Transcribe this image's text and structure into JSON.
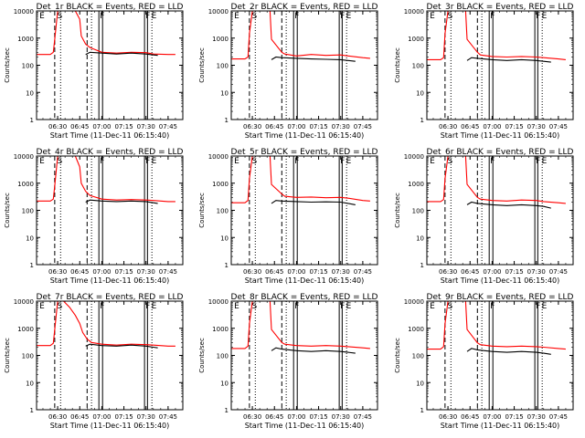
{
  "figure": {
    "background": "#ffffff",
    "colors": {
      "events": "#000000",
      "lld": "#ff0000",
      "axes": "#000000"
    }
  },
  "chart_data": [
    {
      "type": "line",
      "title": "Det_1r BLACK = Events, RED = LLD",
      "xlabel": "Start Time (11-Dec-11 06:15:40)",
      "ylabel": "Counts/sec",
      "yscale": "log",
      "ylim": [
        1,
        10000
      ],
      "y_ticks": [
        "1",
        "10",
        "100",
        "1000",
        "10000"
      ],
      "xlim": [
        "06:15:40",
        "07:55:00"
      ],
      "x_ticks": [
        "06:30",
        "06:45",
        "07:00",
        "07:15",
        "07:30",
        "07:45"
      ],
      "flag_labels": [
        "E",
        "S",
        "F",
        "F",
        "E"
      ],
      "series": [
        {
          "name": "LLD",
          "color": "#ff0000",
          "x": [
            "06:15:40",
            "06:25",
            "06:27",
            "06:28",
            "06:30",
            "06:37",
            "06:42",
            "06:45",
            "06:46",
            "06:49",
            "06:52",
            "07:00",
            "07:10",
            "07:20",
            "07:30",
            "07:35",
            "07:45",
            "07:50"
          ],
          "y": [
            250,
            250,
            300,
            900,
            10000,
            10000,
            10000,
            5000,
            1200,
            600,
            450,
            300,
            280,
            300,
            290,
            260,
            250,
            250
          ]
        },
        {
          "name": "Events",
          "color": "#000000",
          "x": [
            "06:49",
            "06:52",
            "07:00",
            "07:10",
            "07:20",
            "07:30",
            "07:35",
            "07:38"
          ],
          "y": [
            250,
            300,
            280,
            260,
            280,
            260,
            240,
            230
          ]
        }
      ]
    },
    {
      "type": "line",
      "title": "Det_2r BLACK = Events, RED = LLD",
      "xlabel": "Start Time (11-Dec-11 06:15:40)",
      "ylabel": "Counts/sec",
      "yscale": "log",
      "ylim": [
        1,
        10000
      ],
      "y_ticks": [
        "1",
        "10",
        "100",
        "1000",
        "10000"
      ],
      "xlim": [
        "06:15:40",
        "07:55:00"
      ],
      "x_ticks": [
        "06:30",
        "06:45",
        "07:00",
        "07:15",
        "07:30",
        "07:45"
      ],
      "flag_labels": [
        "E",
        "S",
        "F",
        "F",
        "E"
      ],
      "series": [
        {
          "name": "LLD",
          "color": "#ff0000",
          "x": [
            "06:15:40",
            "06:25",
            "06:27",
            "06:28",
            "06:30",
            "06:42",
            "06:43",
            "06:50",
            "06:52",
            "07:00",
            "07:10",
            "07:20",
            "07:30",
            "07:35",
            "07:45",
            "07:50"
          ],
          "y": [
            170,
            170,
            200,
            1500,
            10000,
            10000,
            900,
            300,
            260,
            220,
            250,
            230,
            240,
            220,
            190,
            180
          ]
        },
        {
          "name": "Events",
          "color": "#000000",
          "x": [
            "06:43",
            "06:46",
            "06:50",
            "07:00",
            "07:10",
            "07:20",
            "07:30",
            "07:35",
            "07:40"
          ],
          "y": [
            160,
            200,
            190,
            180,
            170,
            165,
            160,
            150,
            140
          ]
        }
      ]
    },
    {
      "type": "line",
      "title": "Det_3r BLACK = Events, RED = LLD",
      "xlabel": "Start Time (11-Dec-11 06:15:40)",
      "ylabel": "Counts/sec",
      "yscale": "log",
      "ylim": [
        1,
        10000
      ],
      "y_ticks": [
        "1",
        "10",
        "100",
        "1000",
        "10000"
      ],
      "xlim": [
        "06:15:40",
        "07:55:00"
      ],
      "x_ticks": [
        "06:30",
        "06:45",
        "07:00",
        "07:15",
        "07:30",
        "07:45"
      ],
      "flag_labels": [
        "E",
        "S",
        "F",
        "F",
        "E"
      ],
      "series": [
        {
          "name": "LLD",
          "color": "#ff0000",
          "x": [
            "06:15:40",
            "06:25",
            "06:27",
            "06:28",
            "06:30",
            "06:42",
            "06:43",
            "06:50",
            "06:52",
            "07:00",
            "07:10",
            "07:20",
            "07:30",
            "07:35",
            "07:45",
            "07:50"
          ],
          "y": [
            160,
            160,
            190,
            1500,
            10000,
            10000,
            900,
            300,
            240,
            210,
            200,
            210,
            200,
            190,
            170,
            160
          ]
        },
        {
          "name": "Events",
          "color": "#000000",
          "x": [
            "06:43",
            "06:46",
            "06:50",
            "07:00",
            "07:10",
            "07:20",
            "07:30",
            "07:35",
            "07:40"
          ],
          "y": [
            150,
            190,
            180,
            160,
            150,
            160,
            150,
            140,
            130
          ]
        }
      ]
    },
    {
      "type": "line",
      "title": "Det_4r BLACK = Events, RED = LLD",
      "xlabel": "Start Time (11-Dec-11 06:15:40)",
      "ylabel": "Counts/sec",
      "yscale": "log",
      "ylim": [
        1,
        10000
      ],
      "y_ticks": [
        "1",
        "10",
        "100",
        "1000",
        "10000"
      ],
      "xlim": [
        "06:15:40",
        "07:55:00"
      ],
      "x_ticks": [
        "06:30",
        "06:45",
        "07:00",
        "07:15",
        "07:30",
        "07:45"
      ],
      "flag_labels": [
        "E",
        "S",
        "F",
        "F",
        "E"
      ],
      "series": [
        {
          "name": "LLD",
          "color": "#ff0000",
          "x": [
            "06:15:40",
            "06:25",
            "06:27",
            "06:28",
            "06:30",
            "06:37",
            "06:42",
            "06:45",
            "06:46",
            "06:49",
            "06:52",
            "07:00",
            "07:10",
            "07:20",
            "07:30",
            "07:35",
            "07:45",
            "07:50"
          ],
          "y": [
            220,
            220,
            260,
            800,
            10000,
            10000,
            10000,
            4000,
            1000,
            500,
            350,
            260,
            240,
            250,
            240,
            230,
            210,
            210
          ]
        },
        {
          "name": "Events",
          "color": "#000000",
          "x": [
            "06:49",
            "06:52",
            "07:00",
            "07:10",
            "07:20",
            "07:30",
            "07:35",
            "07:38"
          ],
          "y": [
            200,
            240,
            220,
            210,
            220,
            210,
            190,
            180
          ]
        }
      ]
    },
    {
      "type": "line",
      "title": "Det_5r BLACK = Events, RED = LLD",
      "xlabel": "Start Time (11-Dec-11 06:15:40)",
      "ylabel": "Counts/sec",
      "yscale": "log",
      "ylim": [
        1,
        10000
      ],
      "y_ticks": [
        "1",
        "10",
        "100",
        "1000",
        "10000"
      ],
      "xlim": [
        "06:15:40",
        "07:55:00"
      ],
      "x_ticks": [
        "06:30",
        "06:45",
        "07:00",
        "07:15",
        "07:30",
        "07:45"
      ],
      "flag_labels": [
        "E",
        "S",
        "F",
        "F",
        "E"
      ],
      "series": [
        {
          "name": "LLD",
          "color": "#ff0000",
          "x": [
            "06:15:40",
            "06:25",
            "06:27",
            "06:28",
            "06:30",
            "06:42",
            "06:43",
            "06:50",
            "06:52",
            "07:00",
            "07:10",
            "07:20",
            "07:30",
            "07:35",
            "07:45",
            "07:50"
          ],
          "y": [
            190,
            190,
            230,
            1500,
            10000,
            10000,
            900,
            400,
            330,
            300,
            310,
            290,
            300,
            280,
            230,
            220
          ]
        },
        {
          "name": "Events",
          "color": "#000000",
          "x": [
            "06:43",
            "06:46",
            "06:50",
            "07:00",
            "07:10",
            "07:20",
            "07:30",
            "07:35",
            "07:40"
          ],
          "y": [
            180,
            230,
            220,
            210,
            200,
            205,
            200,
            180,
            160
          ]
        }
      ]
    },
    {
      "type": "line",
      "title": "Det_6r BLACK = Events, RED = LLD",
      "xlabel": "Start Time (11-Dec-11 06:15:40)",
      "ylabel": "Counts/sec",
      "yscale": "log",
      "ylim": [
        1,
        10000
      ],
      "y_ticks": [
        "1",
        "10",
        "100",
        "1000",
        "10000"
      ],
      "xlim": [
        "06:15:40",
        "07:55:00"
      ],
      "x_ticks": [
        "06:30",
        "06:45",
        "07:00",
        "07:15",
        "07:30",
        "07:45"
      ],
      "flag_labels": [
        "E",
        "S",
        "F",
        "F",
        "E"
      ],
      "series": [
        {
          "name": "LLD",
          "color": "#ff0000",
          "x": [
            "06:15:40",
            "06:25",
            "06:27",
            "06:28",
            "06:30",
            "06:42",
            "06:43",
            "06:50",
            "06:52",
            "07:00",
            "07:10",
            "07:20",
            "07:30",
            "07:35",
            "07:45",
            "07:50"
          ],
          "y": [
            210,
            210,
            250,
            1500,
            10000,
            10000,
            900,
            300,
            260,
            230,
            220,
            240,
            230,
            210,
            190,
            180
          ]
        },
        {
          "name": "Events",
          "color": "#000000",
          "x": [
            "06:43",
            "06:46",
            "06:50",
            "07:00",
            "07:10",
            "07:20",
            "07:30",
            "07:35",
            "07:40"
          ],
          "y": [
            160,
            200,
            180,
            160,
            150,
            160,
            150,
            140,
            120
          ]
        }
      ]
    },
    {
      "type": "line",
      "title": "Det_7r BLACK = Events, RED = LLD",
      "xlabel": "Start Time (11-Dec-11 06:15:40)",
      "ylabel": "Counts/sec",
      "yscale": "log",
      "ylim": [
        1,
        10000
      ],
      "y_ticks": [
        "1",
        "10",
        "100",
        "1000",
        "10000"
      ],
      "xlim": [
        "06:15:40",
        "07:55:00"
      ],
      "x_ticks": [
        "06:30",
        "06:45",
        "07:00",
        "07:15",
        "07:30",
        "07:45"
      ],
      "flag_labels": [
        "E",
        "S",
        "F",
        "F",
        "E"
      ],
      "series": [
        {
          "name": "LLD",
          "color": "#ff0000",
          "x": [
            "06:15:40",
            "06:25",
            "06:27",
            "06:28",
            "06:30",
            "06:34",
            "06:38",
            "06:42",
            "06:45",
            "06:47",
            "06:50",
            "06:53",
            "07:00",
            "07:10",
            "07:20",
            "07:30",
            "07:35",
            "07:45",
            "07:50"
          ],
          "y": [
            230,
            230,
            280,
            900,
            10000,
            10000,
            6000,
            3000,
            1500,
            700,
            400,
            300,
            260,
            240,
            260,
            250,
            240,
            220,
            220
          ]
        },
        {
          "name": "Events",
          "color": "#000000",
          "x": [
            "06:49",
            "06:52",
            "07:00",
            "07:10",
            "07:20",
            "07:30",
            "07:35",
            "07:38"
          ],
          "y": [
            220,
            260,
            230,
            220,
            240,
            220,
            200,
            190
          ]
        }
      ]
    },
    {
      "type": "line",
      "title": "Det_8r BLACK = Events, RED = LLD",
      "xlabel": "Start Time (11-Dec-11 06:15:40)",
      "ylabel": "Counts/sec",
      "yscale": "log",
      "ylim": [
        1,
        10000
      ],
      "y_ticks": [
        "1",
        "10",
        "100",
        "1000",
        "10000"
      ],
      "xlim": [
        "06:15:40",
        "07:55:00"
      ],
      "x_ticks": [
        "06:30",
        "06:45",
        "07:00",
        "07:15",
        "07:30",
        "07:45"
      ],
      "flag_labels": [
        "E",
        "S",
        "F",
        "F",
        "E"
      ],
      "series": [
        {
          "name": "LLD",
          "color": "#ff0000",
          "x": [
            "06:15:40",
            "06:25",
            "06:27",
            "06:28",
            "06:30",
            "06:42",
            "06:43",
            "06:50",
            "06:52",
            "07:00",
            "07:10",
            "07:20",
            "07:30",
            "07:35",
            "07:45",
            "07:50"
          ],
          "y": [
            180,
            180,
            220,
            1500,
            10000,
            10000,
            900,
            300,
            260,
            230,
            220,
            230,
            220,
            210,
            190,
            180
          ]
        },
        {
          "name": "Events",
          "color": "#000000",
          "x": [
            "06:43",
            "06:46",
            "06:50",
            "07:00",
            "07:10",
            "07:20",
            "07:30",
            "07:35",
            "07:40"
          ],
          "y": [
            150,
            190,
            170,
            150,
            140,
            150,
            140,
            130,
            120
          ]
        }
      ]
    },
    {
      "type": "line",
      "title": "Det_9r BLACK = Events, RED = LLD",
      "xlabel": "Start Time (11-Dec-11 06:15:40)",
      "ylabel": "Counts/sec",
      "yscale": "log",
      "ylim": [
        1,
        10000
      ],
      "y_ticks": [
        "1",
        "10",
        "100",
        "1000",
        "10000"
      ],
      "xlim": [
        "06:15:40",
        "07:55:00"
      ],
      "x_ticks": [
        "06:30",
        "06:45",
        "07:00",
        "07:15",
        "07:30",
        "07:45"
      ],
      "flag_labels": [
        "E",
        "S",
        "F",
        "F",
        "E"
      ],
      "series": [
        {
          "name": "LLD",
          "color": "#ff0000",
          "x": [
            "06:15:40",
            "06:25",
            "06:27",
            "06:28",
            "06:30",
            "06:42",
            "06:43",
            "06:50",
            "06:52",
            "07:00",
            "07:10",
            "07:20",
            "07:30",
            "07:35",
            "07:45",
            "07:50"
          ],
          "y": [
            170,
            170,
            210,
            1500,
            10000,
            10000,
            900,
            290,
            250,
            220,
            210,
            220,
            210,
            200,
            180,
            170
          ]
        },
        {
          "name": "Events",
          "color": "#000000",
          "x": [
            "06:43",
            "06:46",
            "06:50",
            "07:00",
            "07:10",
            "07:20",
            "07:30",
            "07:35",
            "07:40"
          ],
          "y": [
            140,
            180,
            160,
            140,
            130,
            140,
            130,
            120,
            110
          ]
        }
      ]
    }
  ]
}
